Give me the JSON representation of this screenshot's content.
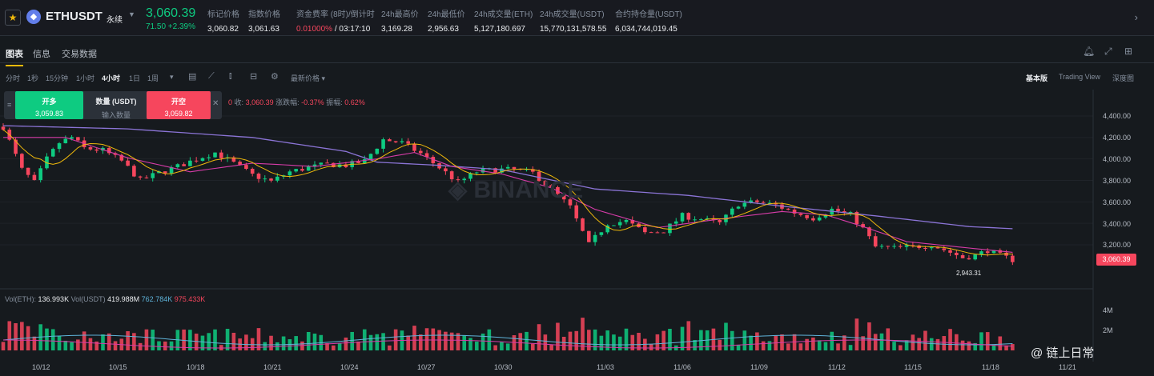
{
  "header": {
    "symbol": "ETHUSDT",
    "contract_type": "永续",
    "last_price": "3,060.39",
    "change": "71.50 +2.39%",
    "stats": [
      {
        "label": "标记价格",
        "value": "3,060.82"
      },
      {
        "label": "指数价格",
        "value": "3,061.63"
      },
      {
        "label": "资金费率 (8时)/倒计时",
        "value_red": "0.01000%",
        "value_rest": " / 03:17:10"
      },
      {
        "label": "24h最高价",
        "value": "3,169.28"
      },
      {
        "label": "24h最低价",
        "value": "2,956.63"
      },
      {
        "label": "24h成交量(ETH)",
        "value": "5,127,180.697"
      },
      {
        "label": "24h成交量(USDT)",
        "value": "15,770,131,578.55"
      },
      {
        "label": "合约持仓量(USDT)",
        "value": "6,034,744,019.45"
      }
    ]
  },
  "tabs": [
    "图表",
    "信息",
    "交易数据"
  ],
  "toolbar": {
    "intervals": [
      "分时",
      "1秒",
      "15分钟",
      "1小时",
      "4小时",
      "1日",
      "1周"
    ],
    "active_interval": "4小时",
    "price_type": "最新价格",
    "views": [
      "基本版",
      "Trading View",
      "深度图"
    ],
    "active_view": "基本版"
  },
  "order_panel": {
    "buy_label": "开多",
    "buy_price": "3,059.83",
    "amount_label": "数量 (USDT)",
    "amount_placeholder": "输入数量",
    "sell_label": "开空",
    "sell_price": "3,059.82"
  },
  "ohlc_legend": {
    "o_fragment": "0",
    "close_label": "收:",
    "close": "3,060.39",
    "change_label": "涨跌幅:",
    "change": "-0.37%",
    "amp_label": "振幅:",
    "amp": "0.62%"
  },
  "volume_legend": {
    "label": "Vol(ETH):",
    "eth": "136.993K",
    "usdt_label": "Vol(USDT)",
    "usdt": "419.988M",
    "ma1": "762.784K",
    "ma2": "975.433K"
  },
  "price_tag": "3,060.39",
  "low_label": "2,943.31",
  "watermark": "@ 链上日常",
  "colors": {
    "up": "#0ecb81",
    "down": "#f6465d",
    "ma_fast": "#f0b90b",
    "ma_mid": "#d63ca8",
    "ma_slow": "#8b74d6",
    "accent": "#f0b90b"
  },
  "chart_data": {
    "type": "candlestick",
    "y_ticks": [
      "4,400.00",
      "4,200.00",
      "4,000.00",
      "3,800.00",
      "3,600.00",
      "3,400.00",
      "3,200.00"
    ],
    "x_ticks": [
      "10/12",
      "10/15",
      "10/18",
      "10/21",
      "10/24",
      "10/27",
      "10/30",
      "11/03",
      "11/06",
      "11/09",
      "11/12",
      "11/15",
      "11/18",
      "11/21"
    ],
    "volume_ticks": [
      "4M",
      "2M"
    ],
    "ylim": [
      2900,
      4500
    ],
    "close_path": [
      [
        0,
        4300
      ],
      [
        3,
        3900
      ],
      [
        5,
        3780
      ],
      [
        7,
        4000
      ],
      [
        9,
        4150
      ],
      [
        11,
        4200
      ],
      [
        13,
        4100
      ],
      [
        16,
        4080
      ],
      [
        19,
        3980
      ],
      [
        22,
        3800
      ],
      [
        25,
        3870
      ],
      [
        28,
        3930
      ],
      [
        31,
        4000
      ],
      [
        34,
        4060
      ],
      [
        37,
        3960
      ],
      [
        40,
        3850
      ],
      [
        43,
        3790
      ],
      [
        46,
        3880
      ],
      [
        49,
        3920
      ],
      [
        52,
        3950
      ],
      [
        55,
        3940
      ],
      [
        58,
        3980
      ],
      [
        61,
        4180
      ],
      [
        64,
        4150
      ],
      [
        67,
        4050
      ],
      [
        70,
        3920
      ],
      [
        73,
        3780
      ],
      [
        76,
        3880
      ],
      [
        79,
        3900
      ],
      [
        82,
        3900
      ],
      [
        85,
        3870
      ],
      [
        88,
        3720
      ],
      [
        91,
        3550
      ],
      [
        94,
        3200
      ],
      [
        97,
        3400
      ],
      [
        100,
        3420
      ],
      [
        103,
        3310
      ],
      [
        106,
        3330
      ],
      [
        109,
        3470
      ],
      [
        112,
        3440
      ],
      [
        115,
        3400
      ],
      [
        118,
        3580
      ],
      [
        121,
        3600
      ],
      [
        124,
        3570
      ],
      [
        127,
        3500
      ],
      [
        130,
        3450
      ],
      [
        133,
        3530
      ],
      [
        136,
        3480
      ],
      [
        138,
        3350
      ],
      [
        140,
        3180
      ],
      [
        143,
        3170
      ],
      [
        146,
        3180
      ],
      [
        149,
        3200
      ],
      [
        152,
        3130
      ],
      [
        154,
        3080
      ],
      [
        156,
        3100
      ],
      [
        158,
        3150
      ],
      [
        160,
        3100
      ],
      [
        162,
        3060
      ]
    ],
    "ma_slow_path": [
      [
        0,
        4310
      ],
      [
        20,
        4280
      ],
      [
        40,
        4200
      ],
      [
        55,
        4070
      ],
      [
        60,
        3970
      ],
      [
        70,
        3940
      ],
      [
        80,
        3900
      ],
      [
        95,
        3720
      ],
      [
        110,
        3660
      ],
      [
        125,
        3560
      ],
      [
        140,
        3470
      ],
      [
        155,
        3370
      ],
      [
        162,
        3350
      ]
    ],
    "ma_mid_path": [
      [
        0,
        4200
      ],
      [
        10,
        4200
      ],
      [
        20,
        4010
      ],
      [
        30,
        3880
      ],
      [
        40,
        3960
      ],
      [
        50,
        3930
      ],
      [
        60,
        4000
      ],
      [
        66,
        4060
      ],
      [
        72,
        3930
      ],
      [
        80,
        3860
      ],
      [
        88,
        3730
      ],
      [
        95,
        3530
      ],
      [
        105,
        3360
      ],
      [
        115,
        3440
      ],
      [
        125,
        3510
      ],
      [
        132,
        3480
      ],
      [
        138,
        3370
      ],
      [
        145,
        3230
      ],
      [
        155,
        3170
      ],
      [
        162,
        3130
      ]
    ]
  }
}
